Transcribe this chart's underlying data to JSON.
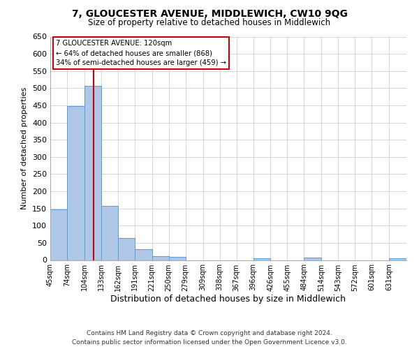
{
  "title": "7, GLOUCESTER AVENUE, MIDDLEWICH, CW10 9QG",
  "subtitle": "Size of property relative to detached houses in Middlewich",
  "xlabel": "Distribution of detached houses by size in Middlewich",
  "ylabel": "Number of detached properties",
  "bin_labels": [
    "45sqm",
    "74sqm",
    "104sqm",
    "133sqm",
    "162sqm",
    "191sqm",
    "221sqm",
    "250sqm",
    "279sqm",
    "309sqm",
    "338sqm",
    "367sqm",
    "396sqm",
    "426sqm",
    "455sqm",
    "484sqm",
    "514sqm",
    "543sqm",
    "572sqm",
    "601sqm",
    "631sqm"
  ],
  "bin_edges": [
    45,
    74,
    104,
    133,
    162,
    191,
    221,
    250,
    279,
    309,
    338,
    367,
    396,
    426,
    455,
    484,
    514,
    543,
    572,
    601,
    631
  ],
  "bar_heights": [
    148,
    448,
    507,
    158,
    65,
    31,
    12,
    10,
    0,
    0,
    0,
    0,
    5,
    0,
    0,
    8,
    0,
    0,
    0,
    0,
    5
  ],
  "bar_color": "#aec6e8",
  "bar_edge_color": "#5b9bd5",
  "property_line_x": 120,
  "property_line_color": "#cc0000",
  "annotation_line1": "7 GLOUCESTER AVENUE: 120sqm",
  "annotation_line2": "← 64% of detached houses are smaller (868)",
  "annotation_line3": "34% of semi-detached houses are larger (459) →",
  "annotation_box_color": "#ffffff",
  "annotation_box_edge_color": "#cc0000",
  "ylim": [
    0,
    650
  ],
  "yticks": [
    0,
    50,
    100,
    150,
    200,
    250,
    300,
    350,
    400,
    450,
    500,
    550,
    600,
    650
  ],
  "footer_line1": "Contains HM Land Registry data © Crown copyright and database right 2024.",
  "footer_line2": "Contains public sector information licensed under the Open Government Licence v3.0.",
  "background_color": "#ffffff",
  "grid_color": "#c8d0dc"
}
